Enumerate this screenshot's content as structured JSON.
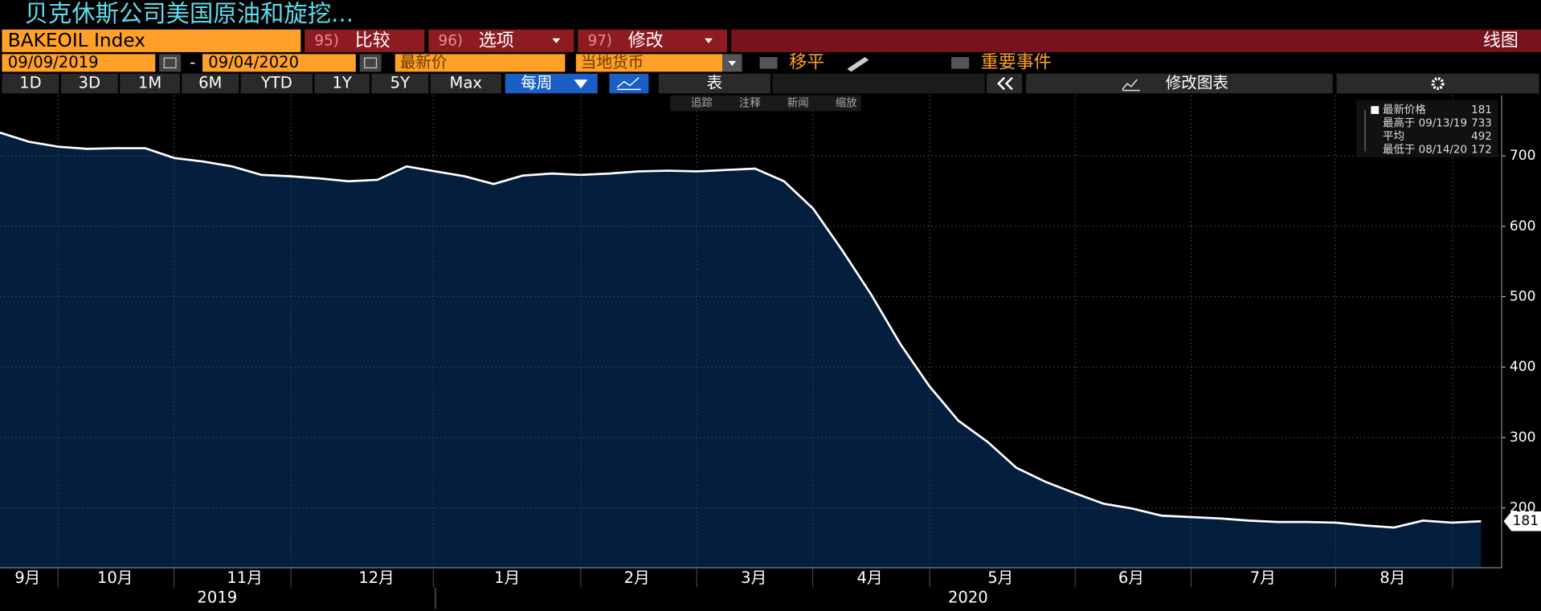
{
  "ui": {
    "title": "贝克休斯公司美国原油和旋挖...",
    "ticker": "BAKEOIL Index",
    "buttons": [
      {
        "code": "95)",
        "label": "比较"
      },
      {
        "code": "96)",
        "label": "选项"
      },
      {
        "code": "97)",
        "label": "修改"
      }
    ],
    "chart_kind": "线图",
    "start_date": "09/09/2019",
    "date_sep": "-",
    "end_date": "09/04/2020",
    "field": "最新价",
    "currency": "当地货币",
    "smoothing": "移平",
    "events": "重要事件",
    "periods": [
      "1D",
      "3D",
      "1M",
      "6M",
      "YTD",
      "1Y",
      "5Y",
      "Max"
    ],
    "frequency": "每周",
    "table": "表",
    "edit_chart": "修改图表",
    "tools": [
      "追踪",
      "注释",
      "新闻",
      "缩放"
    ]
  },
  "chart_data": {
    "type": "area",
    "series": [
      {
        "name": "最新价格",
        "color": "#ffffff",
        "fill": "#041e3e",
        "values": [
          733,
          720,
          713,
          710,
          711,
          711,
          697,
          692,
          685,
          673,
          671,
          668,
          664,
          666,
          685,
          678,
          671,
          660,
          672,
          675,
          673,
          675,
          678,
          679,
          678,
          680,
          682,
          664,
          625,
          566,
          503,
          433,
          373,
          324,
          294,
          257,
          237,
          221,
          206,
          199,
          189,
          187,
          185,
          182,
          180,
          180,
          179,
          175,
          172,
          182,
          179,
          181
        ]
      }
    ],
    "months": [
      "9月",
      "10月",
      "11月",
      "12月",
      "1月",
      "2月",
      "3月",
      "4月",
      "5月",
      "6月",
      "7月",
      "8月"
    ],
    "years": [
      "2019",
      "2020"
    ],
    "ylim": [
      115,
      786
    ],
    "yticks": [
      200,
      300,
      400,
      500,
      600,
      700
    ],
    "grid": true,
    "legend_stats": [
      {
        "label": "最新价格",
        "value": 181
      },
      {
        "label": "最高于 09/13/19",
        "value": 733
      },
      {
        "label": "平均",
        "value": 492
      },
      {
        "label": "最低于 08/14/20",
        "value": 172
      }
    ]
  }
}
